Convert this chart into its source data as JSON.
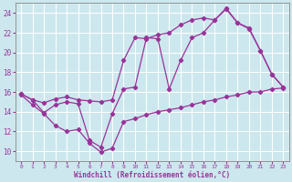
{
  "xlabel": "Windchill (Refroidissement éolien,°C)",
  "background_color": "#cce8ee",
  "grid_color": "#b0d8e0",
  "line_color": "#993399",
  "xlim": [
    -0.5,
    23.5
  ],
  "ylim": [
    9,
    25
  ],
  "xticks": [
    0,
    1,
    2,
    3,
    4,
    5,
    6,
    7,
    8,
    9,
    10,
    11,
    12,
    13,
    14,
    15,
    16,
    17,
    18,
    19,
    20,
    21,
    22,
    23
  ],
  "yticks": [
    10,
    12,
    14,
    16,
    18,
    20,
    22,
    24
  ],
  "curve1_x": [
    0,
    1,
    2,
    3,
    4,
    5,
    6,
    7,
    8,
    9,
    10,
    11,
    12,
    13,
    14,
    15,
    16,
    17,
    18,
    19,
    20,
    21,
    22,
    23
  ],
  "curve1_y": [
    15.8,
    15.2,
    14.9,
    15.3,
    15.5,
    15.2,
    15.1,
    15.0,
    15.2,
    19.2,
    21.5,
    21.4,
    21.8,
    22.0,
    22.8,
    23.3,
    23.5,
    23.3,
    24.5,
    23.0,
    22.5,
    20.2,
    17.8,
    16.5
  ],
  "curve2_x": [
    0,
    1,
    2,
    3,
    4,
    5,
    6,
    7,
    8,
    9,
    10,
    11,
    12,
    13,
    14,
    15,
    16,
    17,
    18,
    19,
    20,
    21,
    22,
    23
  ],
  "curve2_y": [
    15.8,
    15.2,
    13.9,
    14.7,
    15.0,
    14.8,
    11.1,
    10.4,
    13.8,
    16.3,
    16.5,
    21.5,
    21.4,
    16.3,
    19.2,
    21.5,
    22.0,
    23.3,
    24.4,
    23.0,
    22.4,
    20.2,
    17.8,
    16.5
  ],
  "curve3_x": [
    0,
    1,
    2,
    3,
    4,
    5,
    6,
    7,
    8,
    9,
    10,
    11,
    12,
    13,
    14,
    15,
    16,
    17,
    18,
    19,
    20,
    21,
    22,
    23
  ],
  "curve3_y": [
    15.7,
    14.7,
    13.8,
    12.6,
    12.0,
    12.2,
    10.8,
    9.9,
    10.3,
    13.0,
    13.3,
    13.7,
    14.0,
    14.2,
    14.4,
    14.7,
    15.0,
    15.2,
    15.5,
    15.7,
    16.0,
    16.0,
    16.3,
    16.4
  ]
}
